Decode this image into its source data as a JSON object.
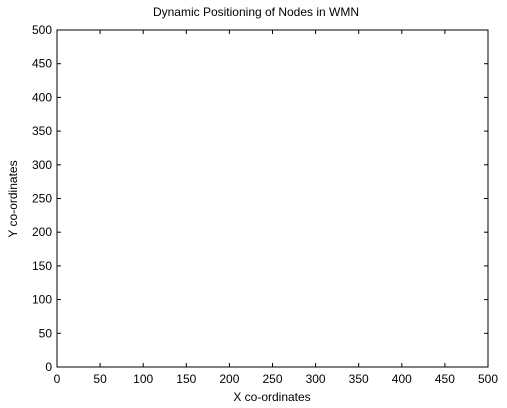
{
  "chart_data": {
    "type": "scatter",
    "title": "Dynamic Positioning of Nodes in WMN",
    "xlabel": "X co-ordinates",
    "ylabel": "Y co-ordinates",
    "xlim": [
      0,
      500
    ],
    "ylim": [
      0,
      500
    ],
    "xticks": [
      0,
      50,
      100,
      150,
      200,
      250,
      300,
      350,
      400,
      450,
      500
    ],
    "yticks": [
      0,
      50,
      100,
      150,
      200,
      250,
      300,
      350,
      400,
      450,
      500
    ],
    "grid": false,
    "nodes": []
  }
}
